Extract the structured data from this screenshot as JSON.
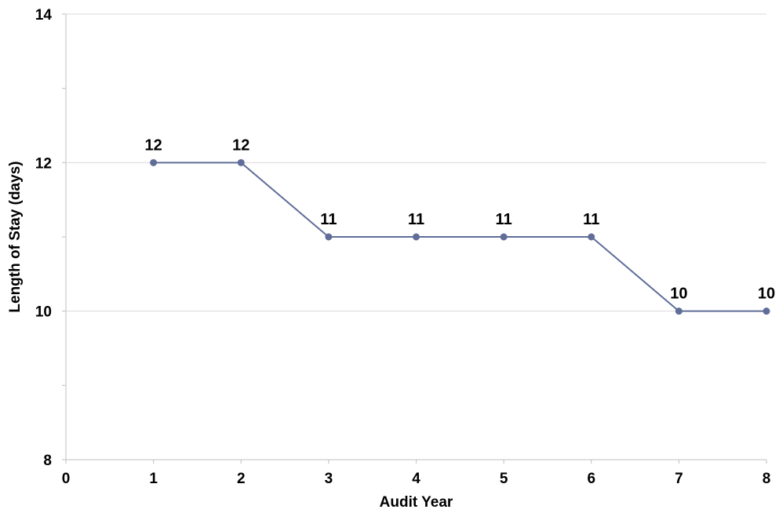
{
  "chart_data": {
    "type": "line",
    "title": "",
    "xlabel": "Audit Year",
    "ylabel": "Length of Stay (days)",
    "xlim": [
      0,
      8
    ],
    "ylim": [
      8,
      14
    ],
    "x_ticks": [
      0,
      1,
      2,
      3,
      4,
      5,
      6,
      7,
      8
    ],
    "y_ticks_labeled": [
      8,
      10,
      12,
      14
    ],
    "y_ticks_minor": [
      9,
      11,
      13
    ],
    "grid": true,
    "legend": "none",
    "series": [
      {
        "x": [
          1,
          2,
          3,
          4,
          5,
          6,
          7,
          8
        ],
        "values": [
          12,
          12,
          11,
          11,
          11,
          11,
          10,
          10
        ],
        "data_labels": [
          "12",
          "12",
          "11",
          "11",
          "11",
          "11",
          "10",
          "10"
        ],
        "color": "#5f6d98"
      }
    ],
    "colors": {
      "line": "#5f6d98",
      "grid": "#d9d9d9",
      "axis": "#bfbfbf"
    }
  }
}
